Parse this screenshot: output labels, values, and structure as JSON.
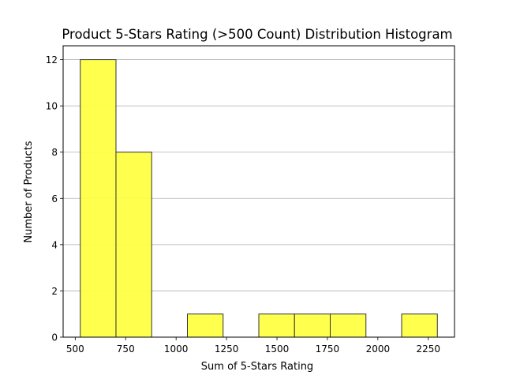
{
  "chart_data": {
    "type": "bar",
    "title": "Product 5-Stars Rating (>500 Count) Distribution Histogram",
    "xlabel": "Sum of 5-Stars Rating",
    "ylabel": "Number of Products",
    "bin_edges": [
      525,
      702,
      879,
      1056,
      1233,
      1410,
      1587,
      1764,
      1941,
      2118,
      2295
    ],
    "values": [
      12,
      8,
      0,
      1,
      0,
      1,
      1,
      1,
      0,
      1
    ],
    "xlim": [
      440,
      2380
    ],
    "ylim": [
      0,
      12.6
    ],
    "xticks": [
      500,
      750,
      1000,
      1250,
      1500,
      1750,
      2000,
      2250
    ],
    "yticks": [
      0,
      2,
      4,
      6,
      8,
      10,
      12
    ],
    "bar_color": "#ffff44",
    "edge_color": "#333333",
    "grid": "y",
    "legend": "none"
  }
}
